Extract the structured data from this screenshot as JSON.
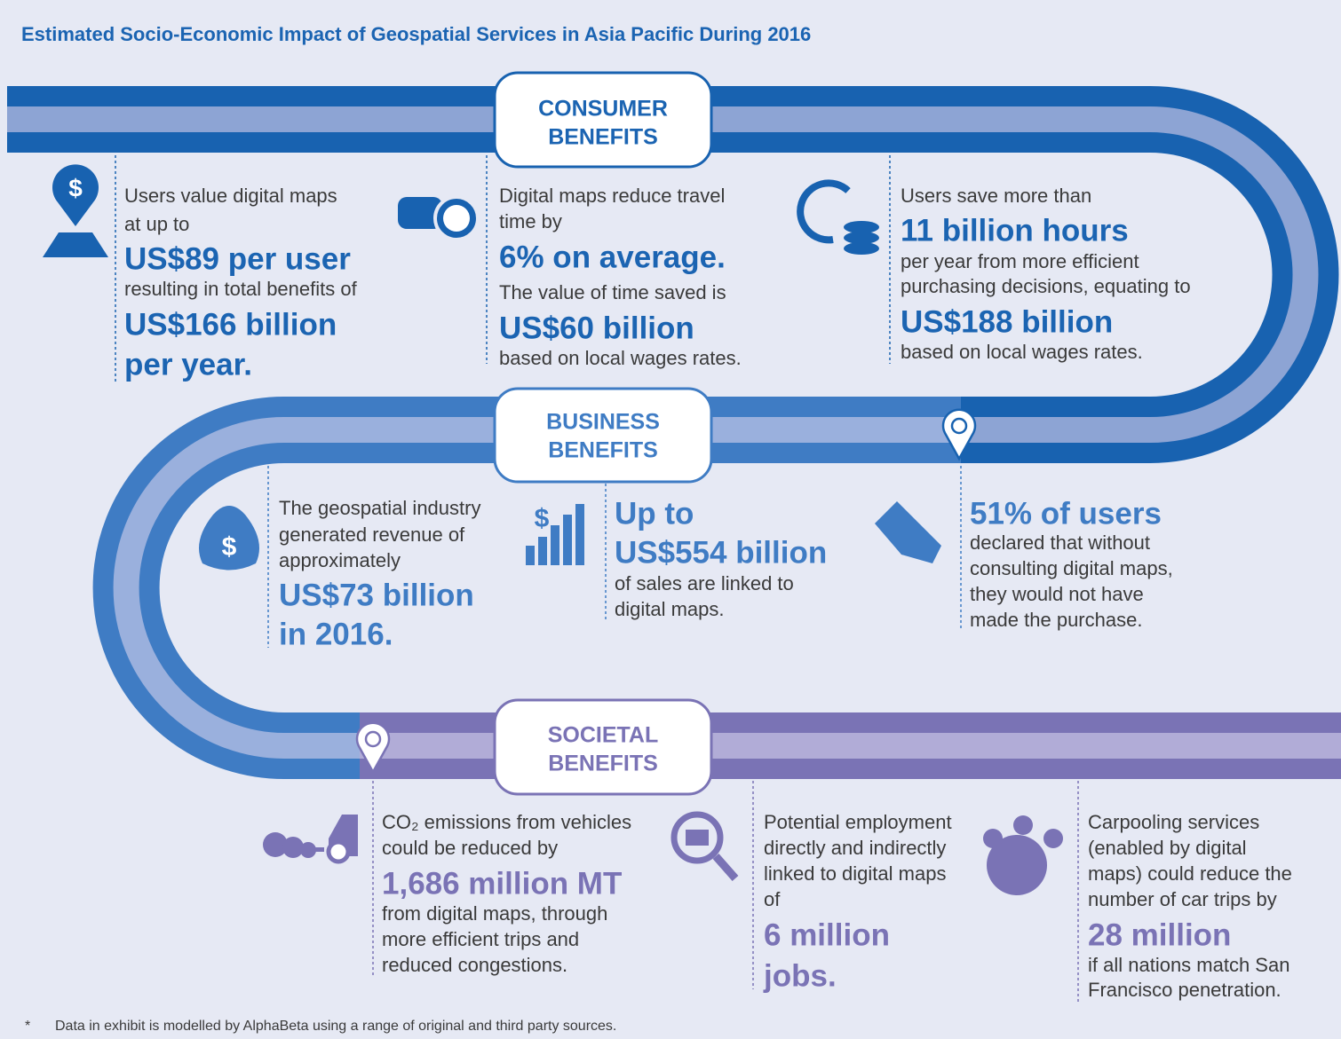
{
  "title": "Estimated Socio-Economic Impact of Geospatial Services in Asia Pacific During 2016",
  "sections": [
    {
      "heading": [
        "CONSUMER",
        "BENEFITS"
      ],
      "items": [
        {
          "lines": [
            "Users value digital maps",
            "at up to",
            "US$89 per user",
            "resulting in total benefits of",
            "US$166 billion",
            "per year."
          ]
        },
        {
          "lines": [
            "Digital maps reduce travel",
            "time by",
            "6% on average.",
            "The value of time saved is",
            "US$60 billion",
            "based on local wages rates."
          ]
        },
        {
          "lines": [
            "Users save more than",
            "11 billion hours",
            "per year from more efficient",
            "purchasing decisions, equating to",
            "US$188 billion",
            "based on local wages rates."
          ]
        }
      ]
    },
    {
      "heading": [
        "BUSINESS",
        "BENEFITS"
      ],
      "items": [
        {
          "lines": [
            "The geospatial industry",
            "generated revenue of",
            "approximately",
            "US$73 billion",
            "in 2016."
          ]
        },
        {
          "lines": [
            "Up to",
            "US$554 billion",
            "of sales are linked to",
            "digital maps."
          ]
        },
        {
          "lines": [
            "51% of users",
            "declared that without",
            "consulting digital maps,",
            "they would not have",
            "made the purchase."
          ]
        }
      ]
    },
    {
      "heading": [
        "SOCIETAL",
        "BENEFITS"
      ],
      "items": [
        {
          "lines": [
            "CO₂ emissions from vehicles",
            "could be reduced by",
            "1,686 million MT",
            "from digital maps, through",
            "more efficient trips and",
            "reduced congestions."
          ]
        },
        {
          "lines": [
            "Potential employment",
            "directly and indirectly",
            "linked to digital maps",
            "of",
            "6 million",
            "jobs."
          ]
        },
        {
          "lines": [
            "Carpooling services",
            "(enabled by digital",
            "maps) could reduce the",
            "number of car trips by",
            "28 million",
            "if all nations match San",
            "Francisco penetration."
          ]
        }
      ]
    }
  ],
  "footnote": {
    "mark": "*",
    "text": "Data in exhibit is modelled by AlphaBeta using a range of original and third party sources."
  }
}
